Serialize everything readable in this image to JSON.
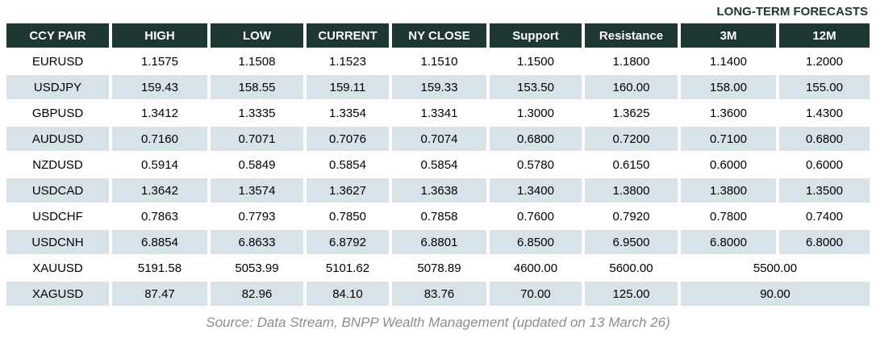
{
  "title": "LONG-TERM FORECASTS",
  "colors": {
    "header_bg": "#1e3732",
    "header_text": "#ffffff",
    "row_bg": "#ffffff",
    "row_alt_bg": "#d7e2e9",
    "title_text": "#1e3732",
    "source_text": "#8d8d8d"
  },
  "chart_data": {
    "type": "table",
    "title": "LONG-TERM FORECASTS",
    "columns": [
      "CCY PAIR",
      "HIGH",
      "LOW",
      "CURRENT",
      "NY CLOSE",
      "Support",
      "Resistance",
      "3M",
      "12M"
    ],
    "rows": [
      {
        "cells": [
          "EURUSD",
          "1.1575",
          "1.1508",
          "1.1523",
          "1.1510",
          "1.1500",
          "1.1800",
          "1.1400",
          "1.2000"
        ],
        "merged": null
      },
      {
        "cells": [
          "USDJPY",
          "159.43",
          "158.55",
          "159.11",
          "159.33",
          "153.50",
          "160.00",
          "158.00",
          "155.00"
        ],
        "merged": null
      },
      {
        "cells": [
          "GBPUSD",
          "1.3412",
          "1.3335",
          "1.3354",
          "1.3341",
          "1.3000",
          "1.3625",
          "1.3600",
          "1.4300"
        ],
        "merged": null
      },
      {
        "cells": [
          "AUDUSD",
          "0.7160",
          "0.7071",
          "0.7076",
          "0.7074",
          "0.6800",
          "0.7200",
          "0.7100",
          "0.6800"
        ],
        "merged": null
      },
      {
        "cells": [
          "NZDUSD",
          "0.5914",
          "0.5849",
          "0.5854",
          "0.5854",
          "0.5780",
          "0.6150",
          "0.6000",
          "0.6000"
        ],
        "merged": null
      },
      {
        "cells": [
          "USDCAD",
          "1.3642",
          "1.3574",
          "1.3627",
          "1.3638",
          "1.3400",
          "1.3800",
          "1.3800",
          "1.3500"
        ],
        "merged": null
      },
      {
        "cells": [
          "USDCHF",
          "0.7863",
          "0.7793",
          "0.7850",
          "0.7858",
          "0.7600",
          "0.7920",
          "0.7800",
          "0.7400"
        ],
        "merged": null
      },
      {
        "cells": [
          "USDCNH",
          "6.8854",
          "6.8633",
          "6.8792",
          "6.8801",
          "6.8500",
          "6.9500",
          "6.8000",
          "6.8000"
        ],
        "merged": null
      },
      {
        "cells": [
          "XAUUSD",
          "5191.58",
          "5053.99",
          "5101.62",
          "5078.89",
          "4600.00",
          "5600.00"
        ],
        "merged": "5500.00"
      },
      {
        "cells": [
          "XAGUSD",
          "87.47",
          "82.96",
          "84.10",
          "83.76",
          "70.00",
          "125.00"
        ],
        "merged": "90.00"
      }
    ]
  },
  "footer": {
    "source": "Source: Data Stream, BNPP Wealth Management (updated on 13 March 26)"
  }
}
